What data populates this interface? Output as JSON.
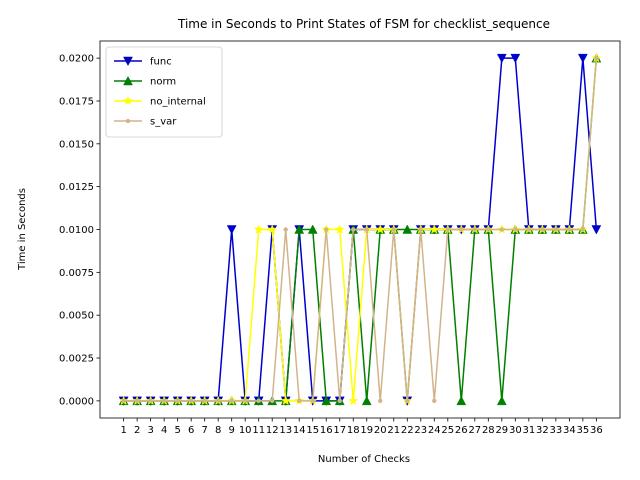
{
  "chart_data": {
    "type": "line",
    "title": "Time in Seconds to Print States of FSM for checklist_sequence",
    "xlabel": "Number of Checks",
    "ylabel": "Time in Seconds",
    "x": [
      1,
      2,
      3,
      4,
      5,
      6,
      7,
      8,
      9,
      10,
      11,
      12,
      13,
      14,
      15,
      16,
      17,
      18,
      19,
      20,
      21,
      22,
      23,
      24,
      25,
      26,
      27,
      28,
      29,
      30,
      31,
      32,
      33,
      34,
      35,
      36
    ],
    "ylim": [
      -0.001,
      0.021
    ],
    "y_ticks": [
      0.0,
      0.0025,
      0.005,
      0.0075,
      0.01,
      0.0125,
      0.015,
      0.0175,
      0.02
    ],
    "y_tick_labels": [
      "0.0000",
      "0.0025",
      "0.0050",
      "0.0075",
      "0.0100",
      "0.0125",
      "0.0150",
      "0.0175",
      "0.0200"
    ],
    "legend_position": "upper-left",
    "grid": false,
    "series": [
      {
        "name": "func",
        "color": "#0000cc",
        "marker": "triangle-down",
        "values": [
          0,
          0,
          0,
          0,
          0,
          0,
          0,
          0,
          0.01,
          0,
          0,
          0.01,
          0,
          0.01,
          0,
          0,
          0,
          0.01,
          0.01,
          0.01,
          0.01,
          0,
          0.01,
          0.01,
          0.01,
          0.01,
          0.01,
          0.01,
          0.02,
          0.02,
          0.01,
          0.01,
          0.01,
          0.01,
          0.02,
          0.01
        ]
      },
      {
        "name": "norm",
        "color": "#008000",
        "marker": "triangle-up",
        "values": [
          0,
          0,
          0,
          0,
          0,
          0,
          0,
          0,
          0,
          0,
          0,
          0,
          0,
          0.01,
          0.01,
          0,
          0,
          0.01,
          0,
          0.01,
          0.01,
          0.01,
          0.01,
          0.01,
          0.01,
          0,
          0.01,
          0.01,
          0,
          0.01,
          0.01,
          0.01,
          0.01,
          0.01,
          0.01,
          0.02
        ]
      },
      {
        "name": "no_internal",
        "color": "#ffff00",
        "marker": "star",
        "values": [
          0,
          0,
          0,
          0,
          0,
          0,
          0,
          0,
          0,
          0,
          0.01,
          0.01,
          0,
          0,
          0,
          0.01,
          0.01,
          0,
          0.01,
          0.01,
          0.01,
          0,
          0.01,
          0.01,
          0.01,
          0.01,
          0.01,
          0.01,
          0.01,
          0.01,
          0.01,
          0.01,
          0.01,
          0.01,
          0.01,
          0.02
        ]
      },
      {
        "name": "s_var",
        "color": "#d2b48c",
        "marker": "dot",
        "values": [
          0,
          0,
          0,
          0,
          0,
          0,
          0,
          0,
          0,
          0,
          0,
          0,
          0.01,
          0,
          0,
          0.01,
          0,
          0.01,
          0.01,
          0,
          0.01,
          0,
          0.01,
          0,
          0.01,
          0.01,
          0.01,
          0.01,
          0.01,
          0.01,
          0.01,
          0.01,
          0.01,
          0.01,
          0.01,
          0.02
        ]
      }
    ]
  }
}
